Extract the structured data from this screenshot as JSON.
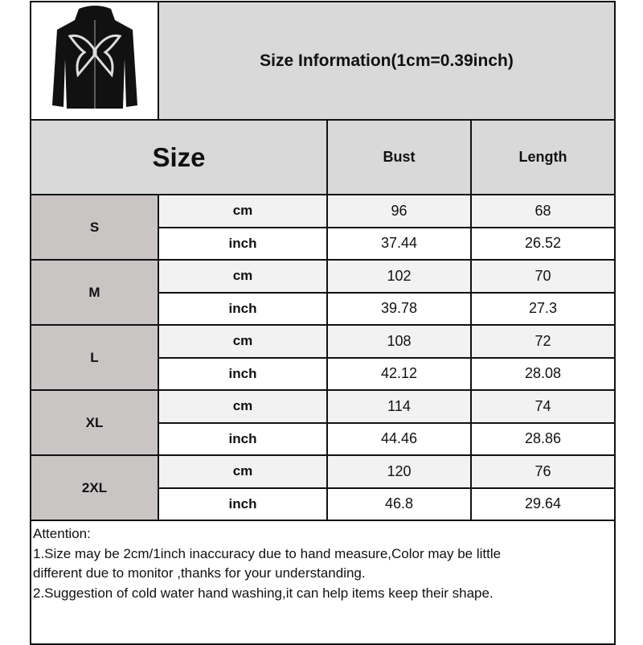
{
  "title": "Size Information(1cm=0.39inch)",
  "product_image": "black zip-up hoodie with white butterfly print",
  "headers": {
    "size": "Size",
    "bust": "Bust",
    "length": "Length"
  },
  "rows": [
    {
      "size": "S",
      "cm": {
        "unit": "cm",
        "bust": "96",
        "length": "68"
      },
      "inch": {
        "unit": "inch",
        "bust": "37.44",
        "length": "26.52"
      }
    },
    {
      "size": "M",
      "cm": {
        "unit": "cm",
        "bust": "102",
        "length": "70"
      },
      "inch": {
        "unit": "inch",
        "bust": "39.78",
        "length": "27.3"
      }
    },
    {
      "size": "L",
      "cm": {
        "unit": "cm",
        "bust": "108",
        "length": "72"
      },
      "inch": {
        "unit": "inch",
        "bust": "42.12",
        "length": "28.08"
      }
    },
    {
      "size": "XL",
      "cm": {
        "unit": "cm",
        "bust": "114",
        "length": "74"
      },
      "inch": {
        "unit": "inch",
        "bust": "44.46",
        "length": "28.86"
      }
    },
    {
      "size": "2XL",
      "cm": {
        "unit": "cm",
        "bust": "120",
        "length": "76"
      },
      "inch": {
        "unit": "inch",
        "bust": "46.8",
        "length": "29.64"
      }
    }
  ],
  "attention": {
    "heading": "Attention:",
    "lines": [
      "1.Size may be 2cm/1inch inaccuracy due to hand measure,Color may be little",
      "different due to monitor ,thanks for your understanding.",
      "2.Suggestion of cold water hand washing,it can help items keep their shape."
    ]
  }
}
